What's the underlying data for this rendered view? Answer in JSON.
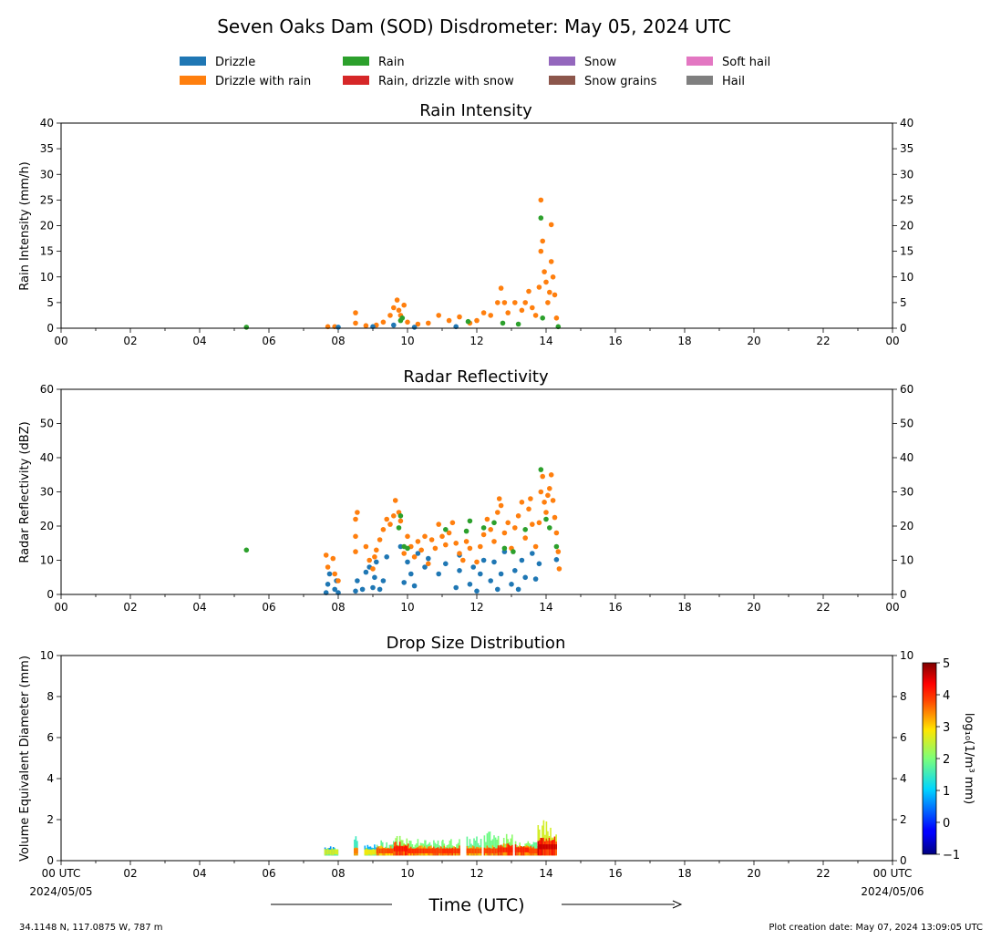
{
  "title": "Seven Oaks Dam (SOD) Disdrometer: May 05, 2024 UTC",
  "legend": {
    "placement": "top-center",
    "entries": [
      {
        "label": "Drizzle",
        "color": "#1f77b4"
      },
      {
        "label": "Drizzle with rain",
        "color": "#ff7f0e"
      },
      {
        "label": "Rain",
        "color": "#2ca02c"
      },
      {
        "label": "Rain, drizzle with snow",
        "color": "#d62728"
      },
      {
        "label": "Snow",
        "color": "#9467bd"
      },
      {
        "label": "Snow grains",
        "color": "#8c564b"
      },
      {
        "label": "Soft hail",
        "color": "#e377c2"
      },
      {
        "label": "Hail",
        "color": "#7f7f7f"
      }
    ]
  },
  "x_axis": {
    "ticks": [
      "00",
      "02",
      "04",
      "06",
      "08",
      "10",
      "12",
      "14",
      "16",
      "18",
      "20",
      "22",
      "00"
    ],
    "bottom_ticks": [
      "00 UTC",
      "02",
      "04",
      "06",
      "08",
      "10",
      "12",
      "14",
      "16",
      "18",
      "20",
      "22",
      "00 UTC"
    ],
    "start_date": "2024/05/05",
    "end_date": "2024/05/06",
    "label": "Time (UTC)",
    "range_hours": [
      0,
      24
    ]
  },
  "footer": {
    "location": "34.1148 N, 117.0875 W, 787 m",
    "created": "Plot creation date: May 07, 2024 13:09:05 UTC"
  },
  "colorbar": {
    "label": "log₁₀(1/m³ mm)",
    "ticks": [
      "5",
      "4",
      "3",
      "2",
      "1",
      "0",
      "−1"
    ],
    "range": [
      -1,
      5
    ]
  },
  "chart_data": [
    {
      "type": "scatter",
      "title": "Rain Intensity",
      "ylabel": "Rain Intensity (mm/h)",
      "xlim": [
        0,
        24
      ],
      "ylim": [
        0,
        40
      ],
      "yticks": [
        "0",
        "5",
        "10",
        "15",
        "20",
        "25",
        "30",
        "35",
        "40"
      ],
      "series": [
        {
          "name": "Drizzle with rain",
          "color": "#ff7f0e",
          "points": [
            [
              7.7,
              0.3
            ],
            [
              7.9,
              0.3
            ],
            [
              8.5,
              1.0
            ],
            [
              8.5,
              3.0
            ],
            [
              8.8,
              0.5
            ],
            [
              9.1,
              0.6
            ],
            [
              9.3,
              1.2
            ],
            [
              9.5,
              2.5
            ],
            [
              9.6,
              4.0
            ],
            [
              9.7,
              5.5
            ],
            [
              9.75,
              3.5
            ],
            [
              9.8,
              2.5
            ],
            [
              9.9,
              4.5
            ],
            [
              10.0,
              1.2
            ],
            [
              10.3,
              0.8
            ],
            [
              10.6,
              1.0
            ],
            [
              10.9,
              2.5
            ],
            [
              11.2,
              1.5
            ],
            [
              11.5,
              2.2
            ],
            [
              11.8,
              1.0
            ],
            [
              12.0,
              1.5
            ],
            [
              12.2,
              3.0
            ],
            [
              12.4,
              2.5
            ],
            [
              12.6,
              5.0
            ],
            [
              12.7,
              7.8
            ],
            [
              12.8,
              5.0
            ],
            [
              12.9,
              3.0
            ],
            [
              13.1,
              5.0
            ],
            [
              13.3,
              3.5
            ],
            [
              13.4,
              5.0
            ],
            [
              13.5,
              7.2
            ],
            [
              13.6,
              4.0
            ],
            [
              13.7,
              2.5
            ],
            [
              13.8,
              8.0
            ],
            [
              13.85,
              15.0
            ],
            [
              13.85,
              25.0
            ],
            [
              13.9,
              17.0
            ],
            [
              13.95,
              11.0
            ],
            [
              14.0,
              9.0
            ],
            [
              14.05,
              5.0
            ],
            [
              14.1,
              7.0
            ],
            [
              14.15,
              13.0
            ],
            [
              14.15,
              20.2
            ],
            [
              14.2,
              10.0
            ],
            [
              14.25,
              6.5
            ],
            [
              14.3,
              2.0
            ]
          ]
        },
        {
          "name": "Rain",
          "color": "#2ca02c",
          "points": [
            [
              5.35,
              0.2
            ],
            [
              9.8,
              1.5
            ],
            [
              9.85,
              2.0
            ],
            [
              11.75,
              1.3
            ],
            [
              12.75,
              1.0
            ],
            [
              13.2,
              0.8
            ],
            [
              13.85,
              21.5
            ],
            [
              13.9,
              2.0
            ],
            [
              14.35,
              0.3
            ]
          ]
        },
        {
          "name": "Drizzle",
          "color": "#1f77b4",
          "points": [
            [
              8.0,
              0.2
            ],
            [
              9.0,
              0.3
            ],
            [
              9.6,
              0.6
            ],
            [
              10.2,
              0.2
            ],
            [
              11.4,
              0.3
            ]
          ]
        }
      ]
    },
    {
      "type": "scatter",
      "title": "Radar Reflectivity",
      "ylabel": "Radar Reflectivity (dBZ)",
      "xlim": [
        0,
        24
      ],
      "ylim": [
        0,
        60
      ],
      "yticks": [
        "0",
        "10",
        "20",
        "30",
        "40",
        "50",
        "60"
      ],
      "series": [
        {
          "name": "Drizzle",
          "color": "#1f77b4",
          "points": [
            [
              7.65,
              0.5
            ],
            [
              7.7,
              3.0
            ],
            [
              7.75,
              6.0
            ],
            [
              7.9,
              1.5
            ],
            [
              7.95,
              4.0
            ],
            [
              8.0,
              0.5
            ],
            [
              8.5,
              1.0
            ],
            [
              8.55,
              4.0
            ],
            [
              8.7,
              1.5
            ],
            [
              8.8,
              6.5
            ],
            [
              8.9,
              8.0
            ],
            [
              9.0,
              2.0
            ],
            [
              9.05,
              5.0
            ],
            [
              9.1,
              9.5
            ],
            [
              9.2,
              1.5
            ],
            [
              9.3,
              4.0
            ],
            [
              9.4,
              11.0
            ],
            [
              9.8,
              14.0
            ],
            [
              9.9,
              3.5
            ],
            [
              10.0,
              9.5
            ],
            [
              10.1,
              6.0
            ],
            [
              10.2,
              2.5
            ],
            [
              10.3,
              12.0
            ],
            [
              10.5,
              8.0
            ],
            [
              10.6,
              10.5
            ],
            [
              10.9,
              6.0
            ],
            [
              11.1,
              9.0
            ],
            [
              11.4,
              2.0
            ],
            [
              11.5,
              7.0
            ],
            [
              11.5,
              11.5
            ],
            [
              11.8,
              3.0
            ],
            [
              11.9,
              8.0
            ],
            [
              12.0,
              1.0
            ],
            [
              12.1,
              6.0
            ],
            [
              12.2,
              10.0
            ],
            [
              12.4,
              4.0
            ],
            [
              12.5,
              9.5
            ],
            [
              12.6,
              1.5
            ],
            [
              12.7,
              6.0
            ],
            [
              12.8,
              12.5
            ],
            [
              13.0,
              3.0
            ],
            [
              13.1,
              7.0
            ],
            [
              13.2,
              1.5
            ],
            [
              13.3,
              10.0
            ],
            [
              13.4,
              5.0
            ],
            [
              13.6,
              12.0
            ],
            [
              13.7,
              4.5
            ],
            [
              13.8,
              9.0
            ],
            [
              14.3,
              10.2
            ]
          ]
        },
        {
          "name": "Drizzle with rain",
          "color": "#ff7f0e",
          "points": [
            [
              7.65,
              11.5
            ],
            [
              7.7,
              8.0
            ],
            [
              7.85,
              10.5
            ],
            [
              7.9,
              6.0
            ],
            [
              8.0,
              4.0
            ],
            [
              8.5,
              12.5
            ],
            [
              8.5,
              17.0
            ],
            [
              8.5,
              22.0
            ],
            [
              8.55,
              24.0
            ],
            [
              8.8,
              14.0
            ],
            [
              8.9,
              10.0
            ],
            [
              9.0,
              7.5
            ],
            [
              9.05,
              11.0
            ],
            [
              9.1,
              13.0
            ],
            [
              9.2,
              16.0
            ],
            [
              9.3,
              19.0
            ],
            [
              9.4,
              22.0
            ],
            [
              9.5,
              20.5
            ],
            [
              9.6,
              23.0
            ],
            [
              9.65,
              27.5
            ],
            [
              9.75,
              24.0
            ],
            [
              9.8,
              21.5
            ],
            [
              9.9,
              12.0
            ],
            [
              10.0,
              17.0
            ],
            [
              10.1,
              14.0
            ],
            [
              10.2,
              11.0
            ],
            [
              10.3,
              15.5
            ],
            [
              10.4,
              13.0
            ],
            [
              10.5,
              17.0
            ],
            [
              10.6,
              9.0
            ],
            [
              10.7,
              16.0
            ],
            [
              10.8,
              13.5
            ],
            [
              10.9,
              20.5
            ],
            [
              11.0,
              17.0
            ],
            [
              11.1,
              14.5
            ],
            [
              11.2,
              18.0
            ],
            [
              11.3,
              21.0
            ],
            [
              11.4,
              15.0
            ],
            [
              11.5,
              12.0
            ],
            [
              11.6,
              10.0
            ],
            [
              11.7,
              15.5
            ],
            [
              11.8,
              13.5
            ],
            [
              12.0,
              9.5
            ],
            [
              12.1,
              14.0
            ],
            [
              12.2,
              17.5
            ],
            [
              12.3,
              22.0
            ],
            [
              12.4,
              19.0
            ],
            [
              12.5,
              15.5
            ],
            [
              12.6,
              24.0
            ],
            [
              12.65,
              28.0
            ],
            [
              12.7,
              26.0
            ],
            [
              12.8,
              18.0
            ],
            [
              12.9,
              21.0
            ],
            [
              13.0,
              13.5
            ],
            [
              13.1,
              19.5
            ],
            [
              13.2,
              23.0
            ],
            [
              13.3,
              27.0
            ],
            [
              13.4,
              16.5
            ],
            [
              13.5,
              25.0
            ],
            [
              13.55,
              28.0
            ],
            [
              13.6,
              20.5
            ],
            [
              13.7,
              14.0
            ],
            [
              13.8,
              21.0
            ],
            [
              13.85,
              30.0
            ],
            [
              13.9,
              34.5
            ],
            [
              13.95,
              27.0
            ],
            [
              14.0,
              24.0
            ],
            [
              14.05,
              29.0
            ],
            [
              14.1,
              31.0
            ],
            [
              14.15,
              35.0
            ],
            [
              14.2,
              27.5
            ],
            [
              14.25,
              22.5
            ],
            [
              14.3,
              18.0
            ],
            [
              14.35,
              12.5
            ],
            [
              14.38,
              7.5
            ]
          ]
        },
        {
          "name": "Rain",
          "color": "#2ca02c",
          "points": [
            [
              5.35,
              13.0
            ],
            [
              9.75,
              19.5
            ],
            [
              9.8,
              23.0
            ],
            [
              9.9,
              14.0
            ],
            [
              10.0,
              13.5
            ],
            [
              11.1,
              19.0
            ],
            [
              11.7,
              18.5
            ],
            [
              11.8,
              21.5
            ],
            [
              12.2,
              19.5
            ],
            [
              12.5,
              21.0
            ],
            [
              12.8,
              13.5
            ],
            [
              13.05,
              12.5
            ],
            [
              13.4,
              19.0
            ],
            [
              13.85,
              36.5
            ],
            [
              14.0,
              22.0
            ],
            [
              14.1,
              19.5
            ],
            [
              14.3,
              14.0
            ]
          ]
        }
      ]
    },
    {
      "type": "heatmap",
      "title": "Drop Size Distribution",
      "ylabel": "Volume Equivalent Diameter (mm)",
      "xlim": [
        0,
        24
      ],
      "ylim": [
        0,
        10
      ],
      "yticks": [
        "0",
        "2",
        "4",
        "6",
        "8",
        "10"
      ],
      "zlim": [
        -1,
        5
      ],
      "columns": [
        {
          "start": 7.6,
          "end": 8.0,
          "top": 0.8,
          "core_top": 0.6,
          "peak": 2.6
        },
        {
          "start": 8.45,
          "end": 8.55,
          "top": 1.2,
          "core_top": 0.7,
          "peak": 3.5
        },
        {
          "start": 8.75,
          "end": 9.1,
          "top": 0.8,
          "core_top": 0.6,
          "peak": 2.8
        },
        {
          "start": 9.1,
          "end": 9.6,
          "top": 1.0,
          "core_top": 0.7,
          "peak": 3.8
        },
        {
          "start": 9.6,
          "end": 10.0,
          "top": 1.3,
          "core_top": 0.9,
          "peak": 4.2
        },
        {
          "start": 10.0,
          "end": 10.5,
          "top": 1.1,
          "core_top": 0.7,
          "peak": 4.0
        },
        {
          "start": 10.5,
          "end": 11.0,
          "top": 1.0,
          "core_top": 0.7,
          "peak": 3.9
        },
        {
          "start": 11.0,
          "end": 11.5,
          "top": 1.1,
          "core_top": 0.7,
          "peak": 4.0
        },
        {
          "start": 11.7,
          "end": 12.1,
          "top": 1.2,
          "core_top": 0.7,
          "peak": 3.8
        },
        {
          "start": 12.2,
          "end": 12.6,
          "top": 1.5,
          "core_top": 0.7,
          "peak": 3.9
        },
        {
          "start": 12.6,
          "end": 13.0,
          "top": 1.3,
          "core_top": 0.8,
          "peak": 4.1
        },
        {
          "start": 13.1,
          "end": 13.5,
          "top": 1.1,
          "core_top": 0.8,
          "peak": 4.1
        },
        {
          "start": 13.5,
          "end": 13.75,
          "top": 1.0,
          "core_top": 0.7,
          "peak": 3.8
        },
        {
          "start": 13.75,
          "end": 14.3,
          "top": 2.0,
          "core_top": 1.1,
          "peak": 4.6
        }
      ]
    }
  ]
}
